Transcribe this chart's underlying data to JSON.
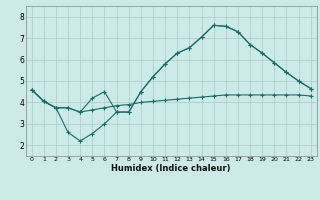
{
  "xlabel": "Humidex (Indice chaleur)",
  "bg_color": "#cceae7",
  "grid_color": "#b0c8c8",
  "line_color": "#1a6b6b",
  "xlim": [
    -0.5,
    23.5
  ],
  "ylim": [
    1.5,
    8.5
  ],
  "xticks": [
    0,
    1,
    2,
    3,
    4,
    5,
    6,
    7,
    8,
    9,
    10,
    11,
    12,
    13,
    14,
    15,
    16,
    17,
    18,
    19,
    20,
    21,
    22,
    23
  ],
  "yticks": [
    2,
    3,
    4,
    5,
    6,
    7,
    8
  ],
  "line1_x": [
    0,
    1,
    2,
    3,
    4,
    5,
    6,
    7,
    8,
    9,
    10,
    11,
    12,
    13,
    14,
    15,
    16,
    17,
    18,
    19,
    20,
    21,
    22,
    23
  ],
  "line1_y": [
    4.6,
    4.05,
    3.75,
    3.75,
    3.55,
    4.2,
    4.5,
    3.55,
    3.55,
    4.5,
    5.2,
    5.8,
    6.3,
    6.55,
    7.05,
    7.6,
    7.55,
    7.3,
    6.7,
    6.3,
    5.85,
    5.4,
    5.0,
    4.65
  ],
  "line2_x": [
    0,
    1,
    2,
    3,
    4,
    5,
    6,
    7,
    8,
    9,
    10,
    11,
    12,
    13,
    14,
    15,
    16,
    17,
    18,
    19,
    20,
    21,
    22,
    23
  ],
  "line2_y": [
    4.6,
    4.05,
    3.75,
    2.6,
    2.2,
    2.55,
    3.0,
    3.55,
    3.55,
    4.5,
    5.2,
    5.8,
    6.3,
    6.55,
    7.05,
    7.6,
    7.55,
    7.3,
    6.7,
    6.3,
    5.85,
    5.4,
    5.0,
    4.65
  ],
  "line3_x": [
    0,
    1,
    2,
    3,
    4,
    5,
    6,
    7,
    8,
    9,
    10,
    11,
    12,
    13,
    14,
    15,
    16,
    17,
    18,
    19,
    20,
    21,
    22,
    23
  ],
  "line3_y": [
    4.6,
    4.05,
    3.75,
    3.75,
    3.55,
    3.65,
    3.75,
    3.85,
    3.9,
    4.0,
    4.05,
    4.1,
    4.15,
    4.2,
    4.25,
    4.3,
    4.35,
    4.35,
    4.35,
    4.35,
    4.35,
    4.35,
    4.35,
    4.3
  ]
}
